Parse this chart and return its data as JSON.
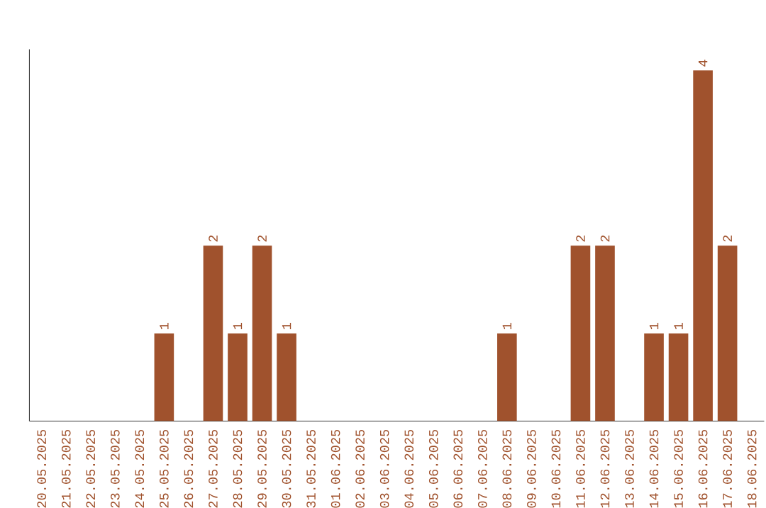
{
  "chart_data": {
    "type": "bar",
    "categories": [
      "20.05.2025",
      "21.05.2025",
      "22.05.2025",
      "23.05.2025",
      "24.05.2025",
      "25.05.2025",
      "26.05.2025",
      "27.05.2025",
      "28.05.2025",
      "29.05.2025",
      "30.05.2025",
      "31.05.2025",
      "01.06.2025",
      "02.06.2025",
      "03.06.2025",
      "04.06.2025",
      "05.06.2025",
      "06.06.2025",
      "07.06.2025",
      "08.06.2025",
      "09.06.2025",
      "10.06.2025",
      "11.06.2025",
      "12.06.2025",
      "13.06.2025",
      "14.06.2025",
      "15.06.2025",
      "16.06.2025",
      "17.06.2025",
      "18.06.2025"
    ],
    "values": [
      0,
      0,
      0,
      0,
      0,
      1,
      0,
      2,
      1,
      2,
      1,
      0,
      0,
      0,
      0,
      0,
      0,
      0,
      0,
      1,
      0,
      0,
      2,
      2,
      0,
      1,
      1,
      4,
      2,
      0
    ],
    "value_labels": [
      null,
      null,
      null,
      null,
      null,
      "1",
      null,
      "2",
      "1",
      "2",
      "1",
      null,
      null,
      null,
      null,
      null,
      null,
      null,
      null,
      "1",
      null,
      null,
      "2",
      "2",
      null,
      "1",
      "1",
      "4",
      "2",
      null
    ],
    "color": "#a0522d",
    "tick_labels": "x",
    "grid": false
  }
}
